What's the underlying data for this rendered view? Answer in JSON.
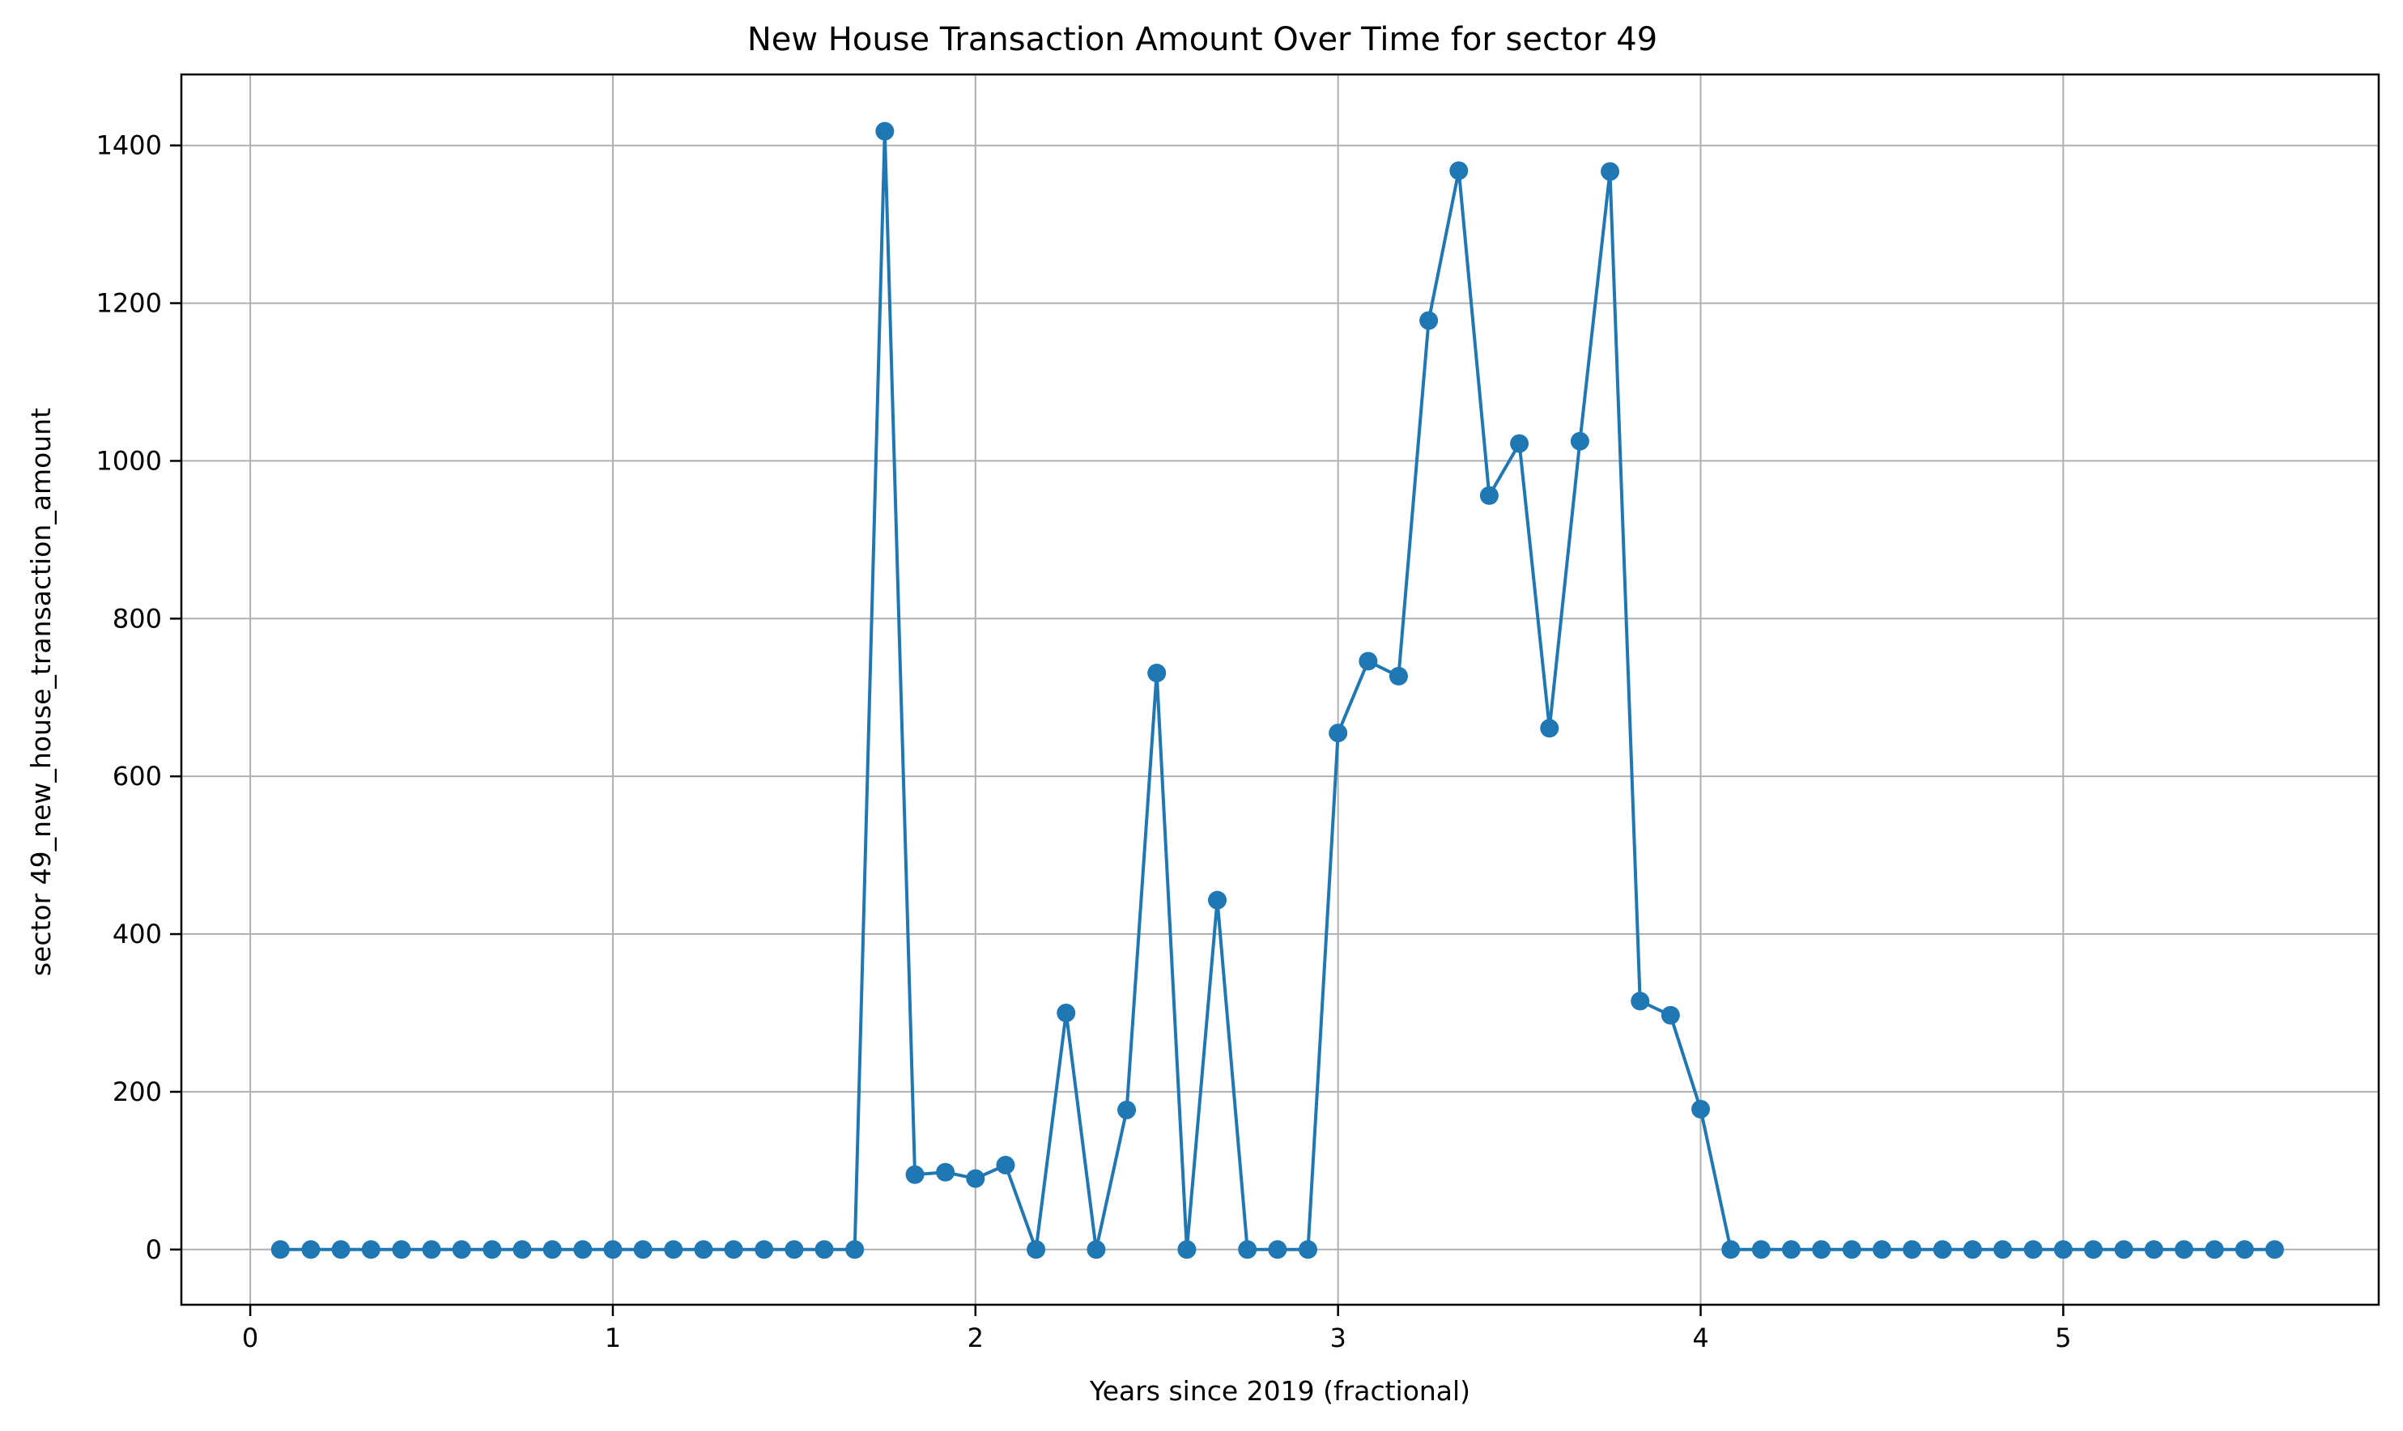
{
  "chart_data": {
    "type": "line",
    "title": "New House Transaction Amount Over Time for sector 49",
    "xlabel": "Years since 2019 (fractional)",
    "ylabel": "sector 49_new_house_transaction_amount",
    "xlim": [
      -0.19,
      5.87
    ],
    "ylim": [
      -70,
      1490
    ],
    "xticks": [
      0,
      1,
      2,
      3,
      4,
      5
    ],
    "yticks": [
      0,
      200,
      400,
      600,
      800,
      1000,
      1200,
      1400
    ],
    "grid": true,
    "marker": "circle",
    "color": "#1f77b4",
    "series": [
      {
        "x": [
          0.083,
          0.167,
          0.25,
          0.333,
          0.417,
          0.5,
          0.583,
          0.667,
          0.75,
          0.833,
          0.917,
          1.0,
          1.083,
          1.167,
          1.25,
          1.333,
          1.417,
          1.5,
          1.583,
          1.667,
          1.75,
          1.833,
          1.917,
          2.0,
          2.083,
          2.167,
          2.25,
          2.333,
          2.417,
          2.5,
          2.583,
          2.667,
          2.75,
          2.833,
          2.917,
          3.0,
          3.083,
          3.167,
          3.25,
          3.333,
          3.417,
          3.5,
          3.583,
          3.667,
          3.75,
          3.833,
          3.917,
          4.0,
          4.083,
          4.167,
          4.25,
          4.333,
          4.417,
          4.5,
          4.583,
          4.667,
          4.75,
          4.833,
          4.917,
          5.0,
          5.083,
          5.167,
          5.25,
          5.333,
          5.417,
          5.5,
          5.583
        ],
        "y": [
          0,
          0,
          0,
          0,
          0,
          0,
          0,
          0,
          0,
          0,
          0,
          0,
          0,
          0,
          0,
          0,
          0,
          0,
          0,
          0,
          1418,
          95,
          98,
          90,
          107,
          0,
          300,
          0,
          177,
          731,
          0,
          443,
          0,
          0,
          0,
          655,
          746,
          727,
          1178,
          1368,
          956,
          1022,
          661,
          1025,
          1367,
          315,
          297,
          178,
          0,
          0,
          0,
          0,
          0,
          0,
          0,
          0,
          0,
          0,
          0,
          0,
          0,
          0,
          0,
          0,
          0,
          0,
          0
        ]
      }
    ]
  }
}
